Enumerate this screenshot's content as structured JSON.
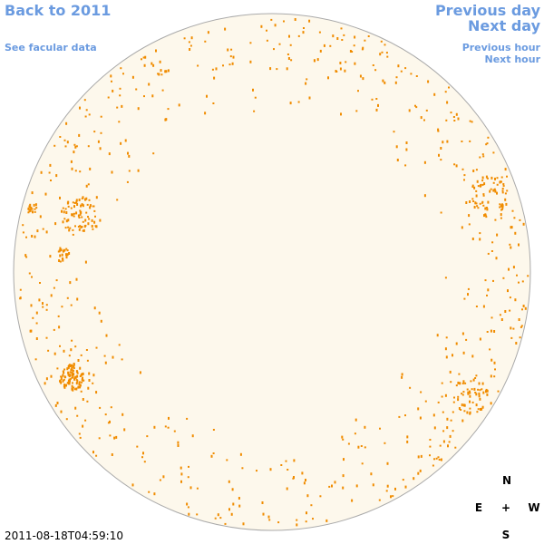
{
  "links": {
    "back": "Back to 2011",
    "facular": "See facular data",
    "previous_day": "Previous day",
    "next_day": "Next day",
    "previous_hour": "Previous hour",
    "next_hour": "Next hour"
  },
  "timestamp": "2011-08-18T04:59:10",
  "compass": {
    "north": "N",
    "east": "E",
    "center": "+",
    "west": "W",
    "south": "S"
  }
}
